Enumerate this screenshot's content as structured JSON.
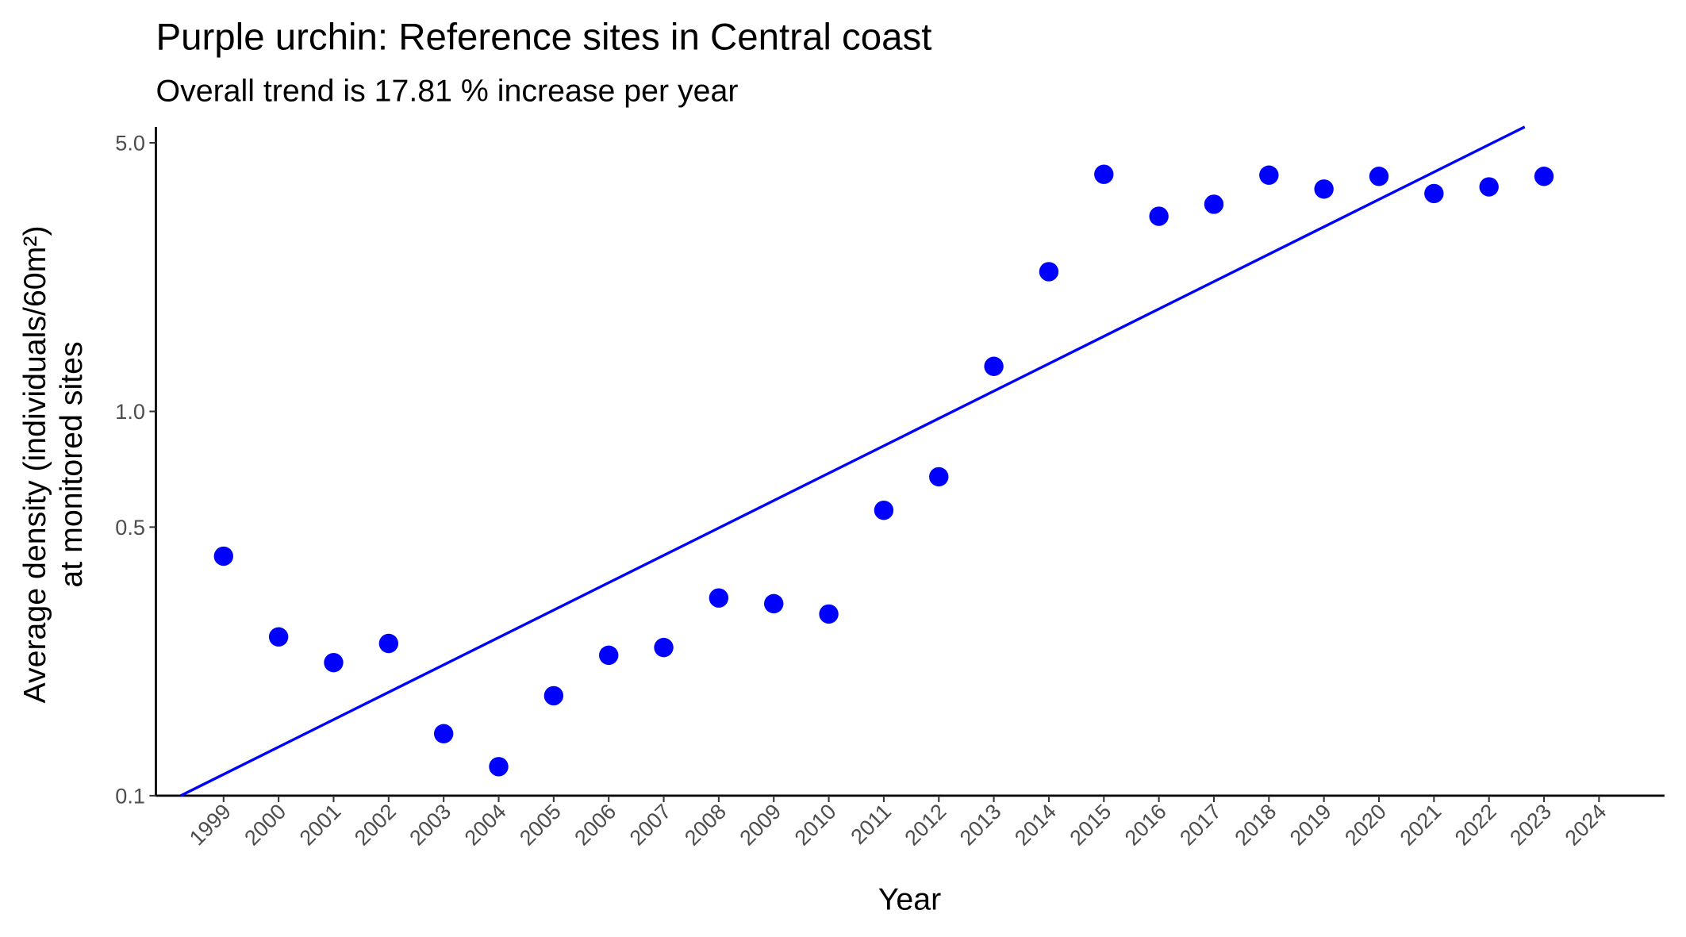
{
  "chart_data": {
    "type": "scatter",
    "title": "Purple urchin: Reference sites in Central coast",
    "subtitle": "Overall trend is 17.81 % increase per year",
    "xlabel": "Year",
    "ylabel": [
      "Average density (individuals/60m²)",
      "at monitored sites"
    ],
    "log_y": true,
    "grid": false,
    "xlim": [
      1997.77,
      2025.19
    ],
    "ylim": [
      0.1,
      5.5
    ],
    "xticks": [
      1999,
      2000,
      2001,
      2002,
      2003,
      2004,
      2005,
      2006,
      2007,
      2008,
      2009,
      2010,
      2011,
      2012,
      2013,
      2014,
      2015,
      2016,
      2017,
      2018,
      2019,
      2020,
      2021,
      2022,
      2023,
      2024
    ],
    "yticks": [
      0.1,
      0.5,
      {
        "value": 1,
        "label": "1.0"
      },
      {
        "value": 5,
        "label": "5.0"
      }
    ],
    "color": "#0000ff",
    "x": [
      1999,
      2000,
      2001,
      2002,
      2003,
      2004,
      2005,
      2006,
      2007,
      2008,
      2009,
      2010,
      2011,
      2012,
      2013,
      2014,
      2015,
      2016,
      2017,
      2018,
      2019,
      2020,
      2021,
      2022,
      2023
    ],
    "values": [
      0.42,
      0.259,
      0.222,
      0.249,
      0.145,
      0.119,
      0.182,
      0.232,
      0.243,
      0.327,
      0.316,
      0.297,
      0.553,
      0.676,
      1.31,
      2.31,
      4.14,
      3.22,
      3.46,
      4.12,
      3.79,
      4.09,
      3.69,
      3.84,
      4.09
    ],
    "trend": {
      "x": [
        1998.22,
        2022.65
      ],
      "values": [
        0.1,
        5.5
      ],
      "color": "#0000ff"
    }
  }
}
